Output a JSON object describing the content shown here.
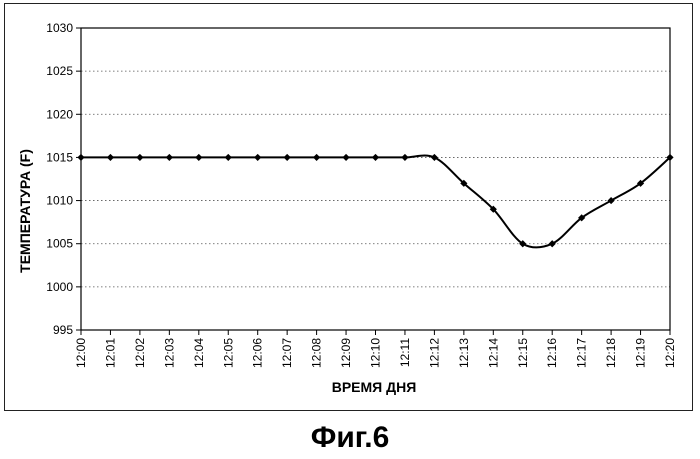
{
  "chart_data": {
    "type": "line",
    "xlabel": "ВРЕМЯ ДНЯ",
    "ylabel": "ТЕМПЕРАТУРА (F)",
    "ylim": [
      995,
      1030
    ],
    "yticks": [
      "995",
      "1000",
      "1005",
      "1010",
      "1015",
      "1020",
      "1025",
      "1030"
    ],
    "categories": [
      "12:00",
      "12:01",
      "12:02",
      "12:03",
      "12:04",
      "12:05",
      "12:06",
      "12:07",
      "12:08",
      "12:09",
      "12:10",
      "12:11",
      "12:12",
      "12:13",
      "12:14",
      "12:15",
      "12:16",
      "12:17",
      "12:18",
      "12:19",
      "12:20"
    ],
    "series": [
      {
        "values": [
          1015,
          1015,
          1015,
          1015,
          1015,
          1015,
          1015,
          1015,
          1015,
          1015,
          1015,
          1015,
          1015,
          1012,
          1009,
          1005,
          1005,
          1008,
          1010,
          1012,
          1015
        ],
        "color": "#000000",
        "marker": "diamond",
        "smooth": true
      }
    ],
    "grid": true,
    "legend": "none"
  },
  "caption": "Фиг.6"
}
